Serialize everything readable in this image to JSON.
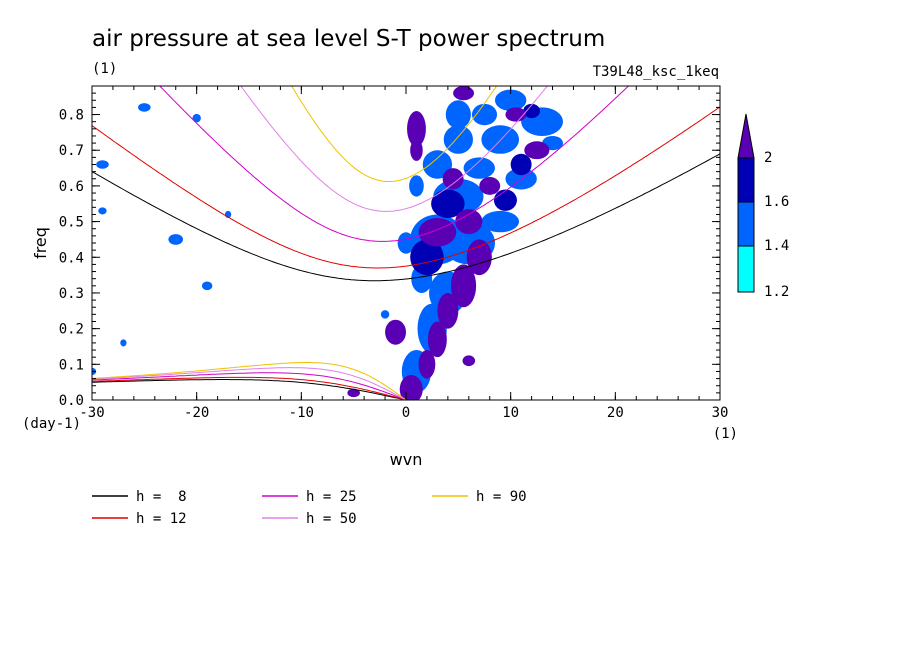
{
  "title": "air pressure at sea level S-T power spectrum",
  "units": "(1)",
  "experiment": "T39L48_ksc_1keq",
  "chart_data": {
    "type": "heatmap",
    "xlabel": "wvn",
    "ylabel": "freq",
    "x_unit": "(1)",
    "y_unit": "(day-1)",
    "xlim": [
      -30,
      30
    ],
    "ylim": [
      0,
      0.88
    ],
    "x_ticks": [
      -30,
      -20,
      -10,
      0,
      10,
      20,
      30
    ],
    "x_tick_labels": [
      "-30",
      "-20",
      "-10",
      "0",
      "10",
      "20",
      "30"
    ],
    "y_ticks": [
      0,
      0.1,
      0.2,
      0.3,
      0.4,
      0.5,
      0.6,
      0.7,
      0.8
    ],
    "y_tick_labels": [
      "0.0",
      "0.1",
      "0.2",
      "0.3",
      "0.4",
      "0.5",
      "0.6",
      "0.7",
      "0.8"
    ],
    "colorbar": {
      "levels": [
        1.2,
        1.4,
        1.6,
        2
      ],
      "labels": [
        "1.2",
        "1.4",
        "1.6",
        "2"
      ],
      "colors": [
        "#00ffff",
        "#0064ff",
        "#0000b4",
        "#5a00b4"
      ]
    },
    "series": [
      {
        "name": "h =  8",
        "h": 8,
        "color": "#000000"
      },
      {
        "name": "h = 12",
        "h": 12,
        "color": "#e00000"
      },
      {
        "name": "h = 25",
        "h": 25,
        "color": "#d000c8"
      },
      {
        "name": "h = 50",
        "h": 50,
        "color": "#e080e8"
      },
      {
        "name": "h = 90",
        "h": 90,
        "color": "#f0c000"
      }
    ],
    "blobs": [
      {
        "x": 1.0,
        "y": 0.76,
        "rx": 0.9,
        "ry": 0.05,
        "level": 3
      },
      {
        "x": 1.0,
        "y": 0.7,
        "rx": 0.6,
        "ry": 0.03,
        "level": 3
      },
      {
        "x": -1.0,
        "y": 0.19,
        "rx": 1.0,
        "ry": 0.035,
        "level": 3
      },
      {
        "x": 6.0,
        "y": 0.11,
        "rx": 0.6,
        "ry": 0.015,
        "level": 3
      },
      {
        "x": -5.0,
        "y": 0.02,
        "rx": 0.6,
        "ry": 0.012,
        "level": 3
      },
      {
        "x": 0.5,
        "y": 0.03,
        "rx": 1.1,
        "ry": 0.04,
        "level": 3
      },
      {
        "x": 2.0,
        "y": 0.1,
        "rx": 0.8,
        "ry": 0.04,
        "level": 3
      },
      {
        "x": 3.0,
        "y": 0.17,
        "rx": 0.9,
        "ry": 0.05,
        "level": 3
      },
      {
        "x": 4.0,
        "y": 0.25,
        "rx": 1.0,
        "ry": 0.05,
        "level": 3
      },
      {
        "x": 5.5,
        "y": 0.32,
        "rx": 1.2,
        "ry": 0.06,
        "level": 3
      },
      {
        "x": 7.0,
        "y": 0.4,
        "rx": 1.2,
        "ry": 0.05,
        "level": 3
      },
      {
        "x": 3.0,
        "y": 0.47,
        "rx": 1.8,
        "ry": 0.04,
        "level": 3
      },
      {
        "x": 6.0,
        "y": 0.5,
        "rx": 1.3,
        "ry": 0.035,
        "level": 3
      },
      {
        "x": 4.5,
        "y": 0.62,
        "rx": 1.0,
        "ry": 0.03,
        "level": 3
      },
      {
        "x": 12.5,
        "y": 0.7,
        "rx": 1.2,
        "ry": 0.025,
        "level": 3
      },
      {
        "x": 10.5,
        "y": 0.8,
        "rx": 1.0,
        "ry": 0.02,
        "level": 3
      },
      {
        "x": 5.5,
        "y": 0.86,
        "rx": 1.0,
        "ry": 0.02,
        "level": 3
      },
      {
        "x": 8.0,
        "y": 0.6,
        "rx": 1.0,
        "ry": 0.025,
        "level": 3
      },
      {
        "x": 2.0,
        "y": 0.4,
        "rx": 1.6,
        "ry": 0.05,
        "level": 2
      },
      {
        "x": 4.0,
        "y": 0.55,
        "rx": 1.6,
        "ry": 0.04,
        "level": 2
      },
      {
        "x": 3.0,
        "y": 0.66,
        "rx": 1.4,
        "ry": 0.04,
        "level": 1
      },
      {
        "x": 7.0,
        "y": 0.65,
        "rx": 1.5,
        "ry": 0.03,
        "level": 1
      },
      {
        "x": 9.0,
        "y": 0.73,
        "rx": 1.8,
        "ry": 0.04,
        "level": 1
      },
      {
        "x": 11.0,
        "y": 0.62,
        "rx": 1.5,
        "ry": 0.03,
        "level": 1
      },
      {
        "x": 13.0,
        "y": 0.78,
        "rx": 2.0,
        "ry": 0.04,
        "level": 1
      },
      {
        "x": 10.0,
        "y": 0.84,
        "rx": 1.5,
        "ry": 0.03,
        "level": 1
      },
      {
        "x": 7.5,
        "y": 0.8,
        "rx": 1.2,
        "ry": 0.03,
        "level": 1
      },
      {
        "x": 5.0,
        "y": 0.73,
        "rx": 1.4,
        "ry": 0.04,
        "level": 1
      },
      {
        "x": 6.0,
        "y": 0.44,
        "rx": 2.5,
        "ry": 0.06,
        "level": 1
      },
      {
        "x": 3.0,
        "y": 0.45,
        "rx": 2.6,
        "ry": 0.07,
        "level": 1
      },
      {
        "x": 5.0,
        "y": 0.57,
        "rx": 2.4,
        "ry": 0.05,
        "level": 1
      },
      {
        "x": 4.0,
        "y": 0.3,
        "rx": 1.8,
        "ry": 0.06,
        "level": 1
      },
      {
        "x": 2.5,
        "y": 0.2,
        "rx": 1.4,
        "ry": 0.07,
        "level": 1
      },
      {
        "x": 1.0,
        "y": 0.08,
        "rx": 1.4,
        "ry": 0.06,
        "level": 1
      },
      {
        "x": 1.5,
        "y": 0.34,
        "rx": 1.0,
        "ry": 0.04,
        "level": 1
      },
      {
        "x": 9.0,
        "y": 0.5,
        "rx": 1.8,
        "ry": 0.03,
        "level": 1
      },
      {
        "x": 14.0,
        "y": 0.72,
        "rx": 1.0,
        "ry": 0.02,
        "level": 1
      },
      {
        "x": -29.0,
        "y": 0.66,
        "rx": 0.6,
        "ry": 0.012,
        "level": 1
      },
      {
        "x": -20.0,
        "y": 0.79,
        "rx": 0.4,
        "ry": 0.012,
        "level": 1
      },
      {
        "x": -22.0,
        "y": 0.45,
        "rx": 0.7,
        "ry": 0.015,
        "level": 1
      },
      {
        "x": -19.0,
        "y": 0.32,
        "rx": 0.5,
        "ry": 0.012,
        "level": 1
      },
      {
        "x": -25.0,
        "y": 0.82,
        "rx": 0.6,
        "ry": 0.012,
        "level": 1
      },
      {
        "x": -29.0,
        "y": 0.53,
        "rx": 0.4,
        "ry": 0.01,
        "level": 1
      },
      {
        "x": -2.0,
        "y": 0.24,
        "rx": 0.4,
        "ry": 0.012,
        "level": 1
      },
      {
        "x": -17.0,
        "y": 0.52,
        "rx": 0.3,
        "ry": 0.01,
        "level": 1
      },
      {
        "x": -30.0,
        "y": 0.08,
        "rx": 0.4,
        "ry": 0.01,
        "level": 1
      },
      {
        "x": -27.0,
        "y": 0.16,
        "rx": 0.3,
        "ry": 0.01,
        "level": 1
      },
      {
        "x": 5.0,
        "y": 0.8,
        "rx": 1.2,
        "ry": 0.04,
        "level": 1
      },
      {
        "x": 9.5,
        "y": 0.56,
        "rx": 1.1,
        "ry": 0.03,
        "level": 2
      },
      {
        "x": 12.0,
        "y": 0.81,
        "rx": 0.8,
        "ry": 0.02,
        "level": 2
      },
      {
        "x": 1.0,
        "y": 0.6,
        "rx": 0.7,
        "ry": 0.03,
        "level": 1
      },
      {
        "x": 0.0,
        "y": 0.44,
        "rx": 0.8,
        "ry": 0.03,
        "level": 1
      },
      {
        "x": 11.0,
        "y": 0.66,
        "rx": 1.0,
        "ry": 0.03,
        "level": 2
      }
    ]
  }
}
